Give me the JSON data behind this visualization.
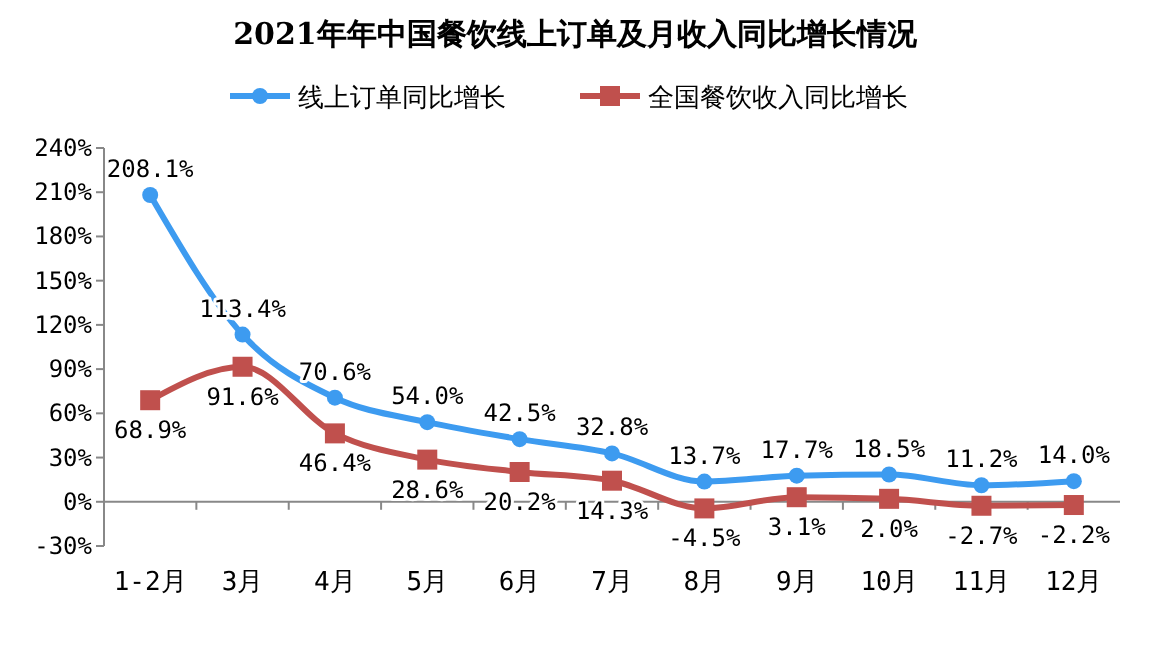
{
  "chart_data": {
    "type": "line",
    "title": "2021年年中国餐饮线上订单及月收入同比增长情况",
    "categories": [
      "1-2月",
      "3月",
      "4月",
      "5月",
      "6月",
      "7月",
      "8月",
      "9月",
      "10月",
      "11月",
      "12月"
    ],
    "series": [
      {
        "name": "线上订单同比增长",
        "color": "#3d9bf0",
        "marker": "circle",
        "values": [
          208.1,
          113.4,
          70.6,
          54.0,
          42.5,
          32.8,
          13.7,
          17.7,
          18.5,
          11.2,
          14.0
        ],
        "value_labels": [
          "208.1%",
          "113.4%",
          "70.6%",
          "54.0%",
          "42.5%",
          "32.8%",
          "13.7%",
          "17.7%",
          "18.5%",
          "11.2%",
          "14.0%"
        ]
      },
      {
        "name": "全国餐饮收入同比增长",
        "color": "#c0504d",
        "marker": "square",
        "values": [
          68.9,
          91.6,
          46.4,
          28.6,
          20.2,
          14.3,
          -4.5,
          3.1,
          2.0,
          -2.7,
          -2.2
        ],
        "value_labels": [
          "68.9%",
          "91.6%",
          "46.4%",
          "28.6%",
          "20.2%",
          "14.3%",
          "-4.5%",
          "3.1%",
          "2.0%",
          "-2.7%",
          "-2.2%"
        ]
      }
    ],
    "ylim": [
      -30,
      240
    ],
    "yticks": [
      {
        "value": -30,
        "label": "-30%"
      },
      {
        "value": 0,
        "label": "0%"
      },
      {
        "value": 30,
        "label": "30%"
      },
      {
        "value": 60,
        "label": "60%"
      },
      {
        "value": 90,
        "label": "90%"
      },
      {
        "value": 120,
        "label": "120%"
      },
      {
        "value": 150,
        "label": "150%"
      },
      {
        "value": 180,
        "label": "180%"
      },
      {
        "value": 210,
        "label": "210%"
      },
      {
        "value": 240,
        "label": "240%"
      }
    ],
    "legend": "top",
    "grid": false
  }
}
